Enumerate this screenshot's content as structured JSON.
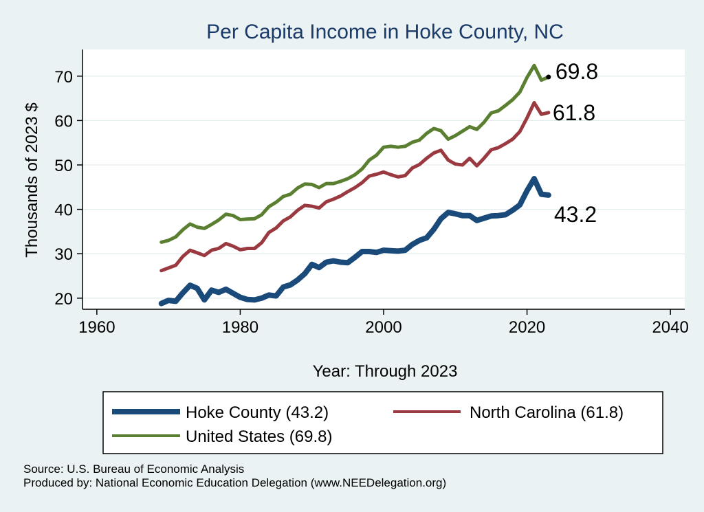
{
  "chart_data": {
    "type": "line",
    "title": "Per Capita Income in Hoke County, NC",
    "xlabel": "Year: Through 2023",
    "ylabel": "Thousands of 2023 $",
    "xlim": [
      1958,
      2042
    ],
    "ylim": [
      17.5,
      76
    ],
    "xticks": [
      1960,
      1980,
      2000,
      2020,
      2040
    ],
    "yticks": [
      20,
      30,
      40,
      50,
      60,
      70
    ],
    "x": [
      1969,
      1970,
      1971,
      1972,
      1973,
      1974,
      1975,
      1976,
      1977,
      1978,
      1979,
      1980,
      1981,
      1982,
      1983,
      1984,
      1985,
      1986,
      1987,
      1988,
      1989,
      1990,
      1991,
      1992,
      1993,
      1994,
      1995,
      1996,
      1997,
      1998,
      1999,
      2000,
      2001,
      2002,
      2003,
      2004,
      2005,
      2006,
      2007,
      2008,
      2009,
      2010,
      2011,
      2012,
      2013,
      2014,
      2015,
      2016,
      2017,
      2018,
      2019,
      2020,
      2021,
      2022,
      2023
    ],
    "series": [
      {
        "name": "Hoke County",
        "legend": "Hoke County (43.2)",
        "color": "#1a4a7a",
        "end_label": "43.2",
        "values": [
          18.8,
          19.5,
          19.3,
          21.2,
          22.9,
          22.2,
          19.6,
          21.8,
          21.3,
          22.0,
          21.1,
          20.2,
          19.7,
          19.6,
          20.0,
          20.7,
          20.5,
          22.5,
          23.0,
          24.1,
          25.5,
          27.6,
          26.9,
          28.1,
          28.4,
          28.1,
          28.0,
          29.2,
          30.5,
          30.5,
          30.3,
          30.8,
          30.7,
          30.6,
          30.8,
          32.1,
          33.0,
          33.6,
          35.5,
          37.9,
          39.3,
          39.0,
          38.6,
          38.6,
          37.5,
          38.0,
          38.5,
          38.6,
          38.8,
          39.8,
          41.0,
          44.2,
          46.9,
          43.4,
          43.2
        ]
      },
      {
        "name": "North Carolina",
        "legend": "North Carolina (61.8)",
        "color": "#9a3a40",
        "end_label": "61.8",
        "values": [
          26.2,
          26.8,
          27.4,
          29.4,
          30.8,
          30.2,
          29.6,
          30.8,
          31.2,
          32.3,
          31.7,
          30.9,
          31.2,
          31.2,
          32.5,
          34.8,
          35.8,
          37.4,
          38.3,
          39.8,
          40.9,
          40.7,
          40.3,
          41.7,
          42.3,
          43.0,
          44.0,
          44.9,
          46.0,
          47.5,
          47.9,
          48.4,
          47.8,
          47.3,
          47.6,
          49.3,
          50.1,
          51.5,
          52.7,
          53.3,
          51.1,
          50.2,
          50.0,
          51.5,
          49.8,
          51.5,
          53.4,
          53.9,
          54.8,
          55.8,
          57.5,
          60.6,
          64.0,
          61.4,
          61.8
        ]
      },
      {
        "name": "United States",
        "legend": "United States (69.8)",
        "color": "#5a7f30",
        "end_label": "69.8",
        "values": [
          32.6,
          33.0,
          33.8,
          35.4,
          36.7,
          36.0,
          35.7,
          36.6,
          37.6,
          38.9,
          38.6,
          37.7,
          37.8,
          37.9,
          38.8,
          40.6,
          41.6,
          42.9,
          43.4,
          44.8,
          45.7,
          45.6,
          44.9,
          45.8,
          45.8,
          46.3,
          46.9,
          47.8,
          49.1,
          51.1,
          52.2,
          54.0,
          54.2,
          54.0,
          54.2,
          55.1,
          55.6,
          57.1,
          58.2,
          57.7,
          55.8,
          56.6,
          57.6,
          58.6,
          58.0,
          59.6,
          61.7,
          62.2,
          63.4,
          64.7,
          66.4,
          69.7,
          72.4,
          69.1,
          69.8
        ]
      }
    ]
  },
  "source": {
    "line1": "Source: U.S. Bureau of Economic Analysis",
    "line2": "Produced by: National Economic Education Delegation (www.NEEDelegation.org)"
  }
}
